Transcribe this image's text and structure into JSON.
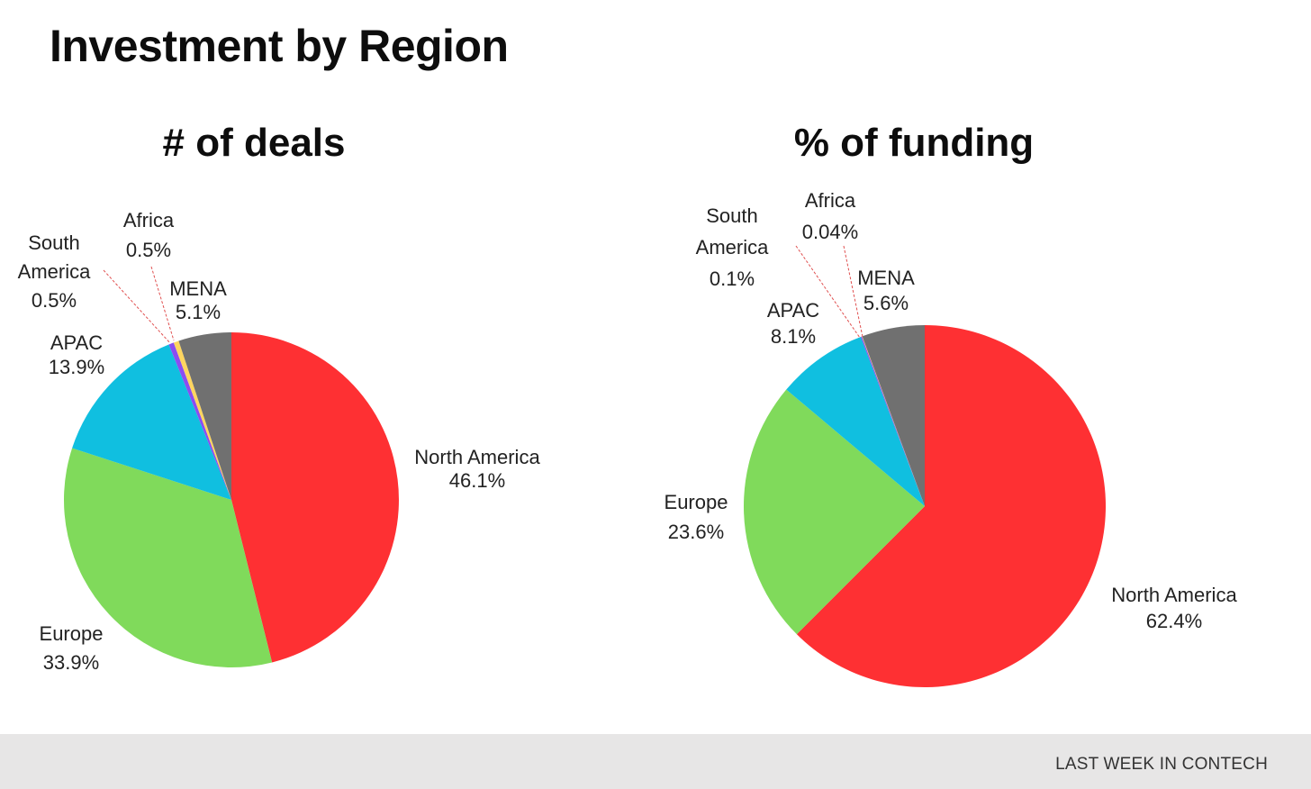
{
  "page": {
    "title": "Investment by Region",
    "footer_brand": "LAST WEEK IN CONTECH"
  },
  "colors": {
    "north_america": "#fe3033",
    "europe": "#80da5b",
    "apac": "#10bfe0",
    "south_america": "#8a4cf2",
    "africa": "#fdd55f",
    "mena": "#707070",
    "leader_line": "#e05050"
  },
  "chart_data": [
    {
      "type": "pie",
      "title": "# of deals",
      "slices": [
        {
          "label": "North America",
          "value_label": "46.1%",
          "value": 46.1,
          "color": "#fe3033"
        },
        {
          "label": "Europe",
          "value_label": "33.9%",
          "value": 33.9,
          "color": "#80da5b"
        },
        {
          "label": "APAC",
          "value_label": "13.9%",
          "value": 13.9,
          "color": "#10bfe0"
        },
        {
          "label": "South America",
          "value_label": "0.5%",
          "value": 0.5,
          "color": "#8a4cf2"
        },
        {
          "label": "Africa",
          "value_label": "0.5%",
          "value": 0.5,
          "color": "#fdd55f"
        },
        {
          "label": "MENA",
          "value_label": "5.1%",
          "value": 5.1,
          "color": "#707070"
        }
      ]
    },
    {
      "type": "pie",
      "title": "% of funding",
      "slices": [
        {
          "label": "North America",
          "value_label": "62.4%",
          "value": 62.4,
          "color": "#fe3033"
        },
        {
          "label": "Europe",
          "value_label": "23.6%",
          "value": 23.6,
          "color": "#80da5b"
        },
        {
          "label": "APAC",
          "value_label": "8.1%",
          "value": 8.1,
          "color": "#10bfe0"
        },
        {
          "label": "South America",
          "value_label": "0.1%",
          "value": 0.1,
          "color": "#8a4cf2"
        },
        {
          "label": "Africa",
          "value_label": "0.04%",
          "value": 0.04,
          "color": "#fdd55f"
        },
        {
          "label": "MENA",
          "value_label": "5.6%",
          "value": 5.6,
          "color": "#707070"
        }
      ]
    }
  ]
}
